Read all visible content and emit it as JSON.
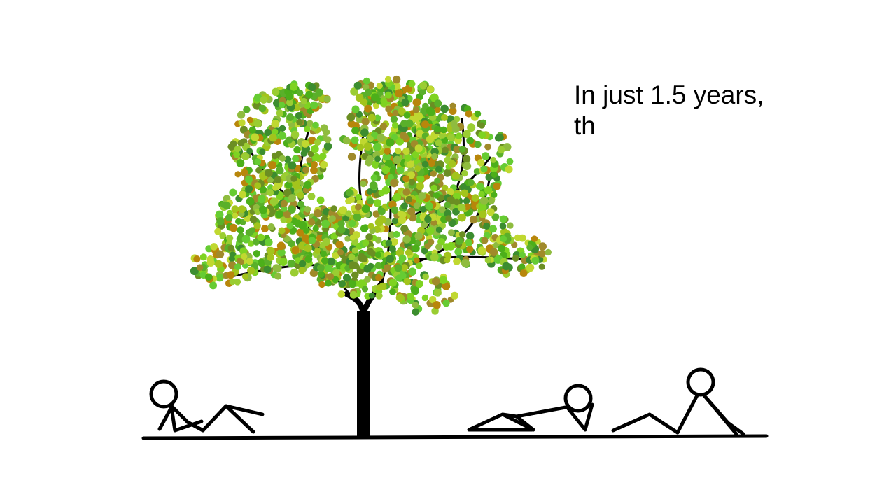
{
  "slide": {
    "caption_lines": [
      "In just 1.5 years,",
      "th"
    ]
  },
  "colors": {
    "background": "#ffffff",
    "ink": "#000000",
    "leaf_palette": [
      "#7ed321",
      "#5ab02a",
      "#9acd32",
      "#a3c41c",
      "#3c8d2f",
      "#b8860b",
      "#6b8e23",
      "#8fbc3f",
      "#c0d830",
      "#4caf1a",
      "#a08a2a",
      "#66cc33"
    ]
  },
  "scene": {
    "figures": [
      {
        "id": "left-reclining-person",
        "pose": "reclining on elbow"
      },
      {
        "id": "middle-lying-person",
        "pose": "lying with knees up"
      },
      {
        "id": "right-reclining-person",
        "pose": "reclining upright"
      }
    ],
    "tree": {
      "foliage": "dense green and olive leaf dots"
    }
  }
}
